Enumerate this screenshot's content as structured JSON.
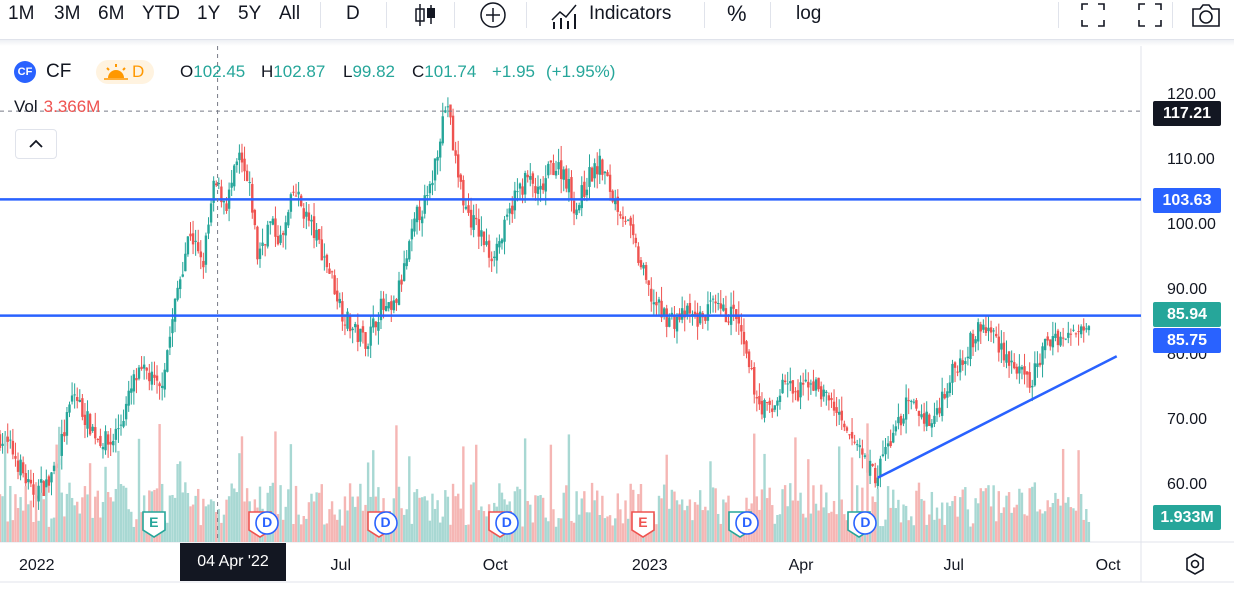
{
  "toolbar": {
    "ranges": [
      "1M",
      "3M",
      "6M",
      "YTD",
      "1Y",
      "5Y",
      "All"
    ],
    "interval": "D",
    "indicators_label": "Indicators",
    "percent_label": "%",
    "log_label": "log",
    "icons": [
      "candles-icon",
      "compare-plus-icon",
      "indicators-chart-icon",
      "fullscreen-icon",
      "fullscreen-alt-icon",
      "camera-icon"
    ]
  },
  "legend": {
    "symbol_badge": "CF",
    "symbol": "CF",
    "session_label": "D",
    "open_label": "O",
    "open": "102.45",
    "high_label": "H",
    "high": "102.87",
    "low_label": "L",
    "low": "99.82",
    "close_label": "C",
    "close": "101.74",
    "change": "+1.95",
    "change_pct": "(+1.95%)",
    "vol_label": "Vol",
    "vol_value": "3.366M"
  },
  "colors": {
    "up": "#26a69a",
    "down": "#ef5350",
    "line": "#2962ff",
    "vol_up": "#a8d8d3",
    "vol_down": "#f5b6b4"
  },
  "price_tags": {
    "crosshair": "117.21",
    "upper_line": "103.63",
    "last_price": "85.94",
    "lower_line": "85.75",
    "volume": "1.933M"
  },
  "crosshair_date": "04 Apr '22",
  "earnings_markers": [
    {
      "t": 0.191,
      "kind": "E",
      "color": "#26a69a"
    },
    {
      "t": 0.365,
      "kind": "E",
      "color": "#ef5350"
    },
    {
      "t": 0.376,
      "kind": "D",
      "color": "#2962ff"
    },
    {
      "t": 0.558,
      "kind": "E",
      "color": "#ef5350"
    },
    {
      "t": 0.569,
      "kind": "D",
      "color": "#2962ff"
    },
    {
      "t": 0.756,
      "kind": "E",
      "color": "#ef5350"
    },
    {
      "t": 0.767,
      "kind": "D",
      "color": "#2962ff"
    },
    {
      "t": 0.989,
      "kind": "E",
      "color": "#ef5350"
    },
    {
      "t": 1.148,
      "kind": "E",
      "color": "#26a69a"
    },
    {
      "t": 1.159,
      "kind": "D",
      "color": "#2962ff"
    },
    {
      "t": 1.341,
      "kind": "E",
      "color": "#26a69a"
    },
    {
      "t": 1.352,
      "kind": "D",
      "color": "#2962ff"
    }
  ],
  "chart_data": {
    "type": "candlestick",
    "symbol": "CF",
    "interval": "D",
    "x_ticks": [
      {
        "label": "2022",
        "t": 0.0
      },
      {
        "label": "Jul",
        "t": 0.496
      },
      {
        "label": "Oct",
        "t": 0.748
      },
      {
        "label": "2023",
        "t": 1.0
      },
      {
        "label": "Apr",
        "t": 1.247
      },
      {
        "label": "Jul",
        "t": 1.496
      },
      {
        "label": "Oct",
        "t": 1.748
      }
    ],
    "xlim": [
      -0.06,
      1.8
    ],
    "y_ticks": [
      60,
      70,
      80,
      90,
      100,
      110,
      120
    ],
    "ylim": [
      56.2,
      123.6
    ],
    "price_path": [
      [
        -0.06,
        67
      ],
      [
        -0.04,
        65
      ],
      [
        -0.02,
        61
      ],
      [
        -0.01,
        58.5
      ],
      [
        0.02,
        60
      ],
      [
        0.04,
        66
      ],
      [
        0.06,
        74
      ],
      [
        0.08,
        70
      ],
      [
        0.1,
        67
      ],
      [
        0.12,
        66
      ],
      [
        0.14,
        70
      ],
      [
        0.16,
        76
      ],
      [
        0.18,
        77
      ],
      [
        0.2,
        74
      ],
      [
        0.22,
        84
      ],
      [
        0.23,
        90
      ],
      [
        0.25,
        99
      ],
      [
        0.27,
        93
      ],
      [
        0.29,
        106
      ],
      [
        0.31,
        103
      ],
      [
        0.33,
        110
      ],
      [
        0.35,
        104
      ],
      [
        0.36,
        95
      ],
      [
        0.38,
        100
      ],
      [
        0.4,
        97
      ],
      [
        0.42,
        105
      ],
      [
        0.44,
        101
      ],
      [
        0.46,
        97
      ],
      [
        0.48,
        92
      ],
      [
        0.5,
        86
      ],
      [
        0.52,
        83
      ],
      [
        0.54,
        82
      ],
      [
        0.56,
        87
      ],
      [
        0.58,
        86
      ],
      [
        0.6,
        93
      ],
      [
        0.62,
        101
      ],
      [
        0.64,
        104
      ],
      [
        0.66,
        115
      ],
      [
        0.67,
        119
      ],
      [
        0.68,
        111
      ],
      [
        0.7,
        102
      ],
      [
        0.72,
        99
      ],
      [
        0.74,
        95
      ],
      [
        0.76,
        98
      ],
      [
        0.78,
        104
      ],
      [
        0.8,
        107
      ],
      [
        0.82,
        104
      ],
      [
        0.84,
        109
      ],
      [
        0.86,
        108
      ],
      [
        0.88,
        102
      ],
      [
        0.9,
        107
      ],
      [
        0.92,
        109
      ],
      [
        0.94,
        104
      ],
      [
        0.96,
        101
      ],
      [
        0.98,
        95
      ],
      [
        1.0,
        89
      ],
      [
        1.02,
        86
      ],
      [
        1.04,
        85
      ],
      [
        1.06,
        86
      ],
      [
        1.08,
        85
      ],
      [
        1.1,
        87
      ],
      [
        1.12,
        86
      ],
      [
        1.14,
        86
      ],
      [
        1.16,
        78
      ],
      [
        1.18,
        72
      ],
      [
        1.2,
        71
      ],
      [
        1.22,
        76
      ],
      [
        1.24,
        73
      ],
      [
        1.26,
        76
      ],
      [
        1.28,
        74
      ],
      [
        1.3,
        72
      ],
      [
        1.32,
        67
      ],
      [
        1.34,
        66
      ],
      [
        1.36,
        62
      ],
      [
        1.37,
        61
      ],
      [
        1.38,
        64
      ],
      [
        1.4,
        68
      ],
      [
        1.42,
        72
      ],
      [
        1.44,
        71
      ],
      [
        1.46,
        69
      ],
      [
        1.48,
        74
      ],
      [
        1.5,
        78
      ],
      [
        1.52,
        81
      ],
      [
        1.54,
        84
      ],
      [
        1.56,
        83
      ],
      [
        1.58,
        80
      ],
      [
        1.6,
        77
      ],
      [
        1.62,
        75
      ],
      [
        1.64,
        80
      ],
      [
        1.66,
        83
      ],
      [
        1.68,
        82
      ],
      [
        1.7,
        84
      ],
      [
        1.72,
        85.94
      ]
    ],
    "horizontal_lines": [
      103.63,
      85.75
    ],
    "trend_line": {
      "from": [
        1.372,
        60.8
      ],
      "to": [
        1.762,
        79.5
      ]
    },
    "crosshair": {
      "t": 0.295,
      "price": 117.21
    },
    "last_close": 85.94,
    "volume_last": "1.933M"
  }
}
